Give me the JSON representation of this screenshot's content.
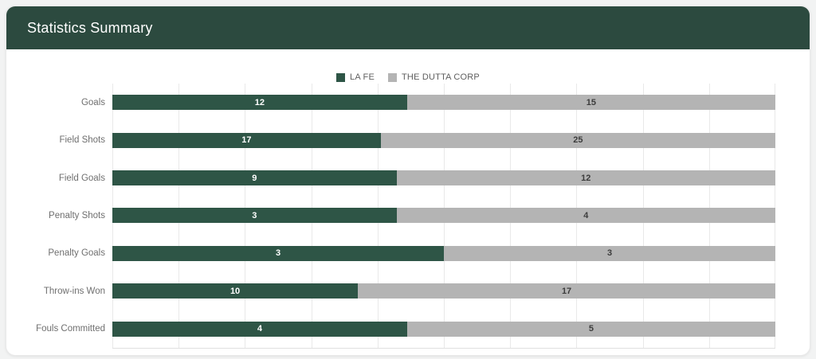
{
  "header": {
    "title": "Statistics Summary"
  },
  "chart_data": {
    "type": "bar",
    "orientation": "horizontal",
    "stacked": "percent",
    "title": "Statistics Summary",
    "categories": [
      "Goals",
      "Field Shots",
      "Field Goals",
      "Penalty Shots",
      "Penalty Goals",
      "Throw-ins Won",
      "Fouls Committed"
    ],
    "series": [
      {
        "name": "LA FE",
        "color": "#2e5546",
        "value_text_color": "#ffffff",
        "values": [
          12,
          17,
          9,
          3,
          3,
          10,
          4
        ]
      },
      {
        "name": "THE DUTTA CORP",
        "color": "#b4b4b4",
        "value_text_color": "#3c3c3c",
        "values": [
          15,
          25,
          12,
          4,
          3,
          17,
          5
        ]
      }
    ],
    "legend_position": "top",
    "grid": true,
    "gridline_percent_step": 10,
    "value_labels_shown": true,
    "x_axis_tick_labels": []
  },
  "colors": {
    "header_bg": "#2c4a3f",
    "card_bg": "#ffffff",
    "page_bg": "#f2f3f3",
    "gridline": "#e9e9e9",
    "axis_line": "#e0e0e0",
    "category_label_text": "#6f6f6f",
    "legend_text": "#5f5f5f"
  }
}
